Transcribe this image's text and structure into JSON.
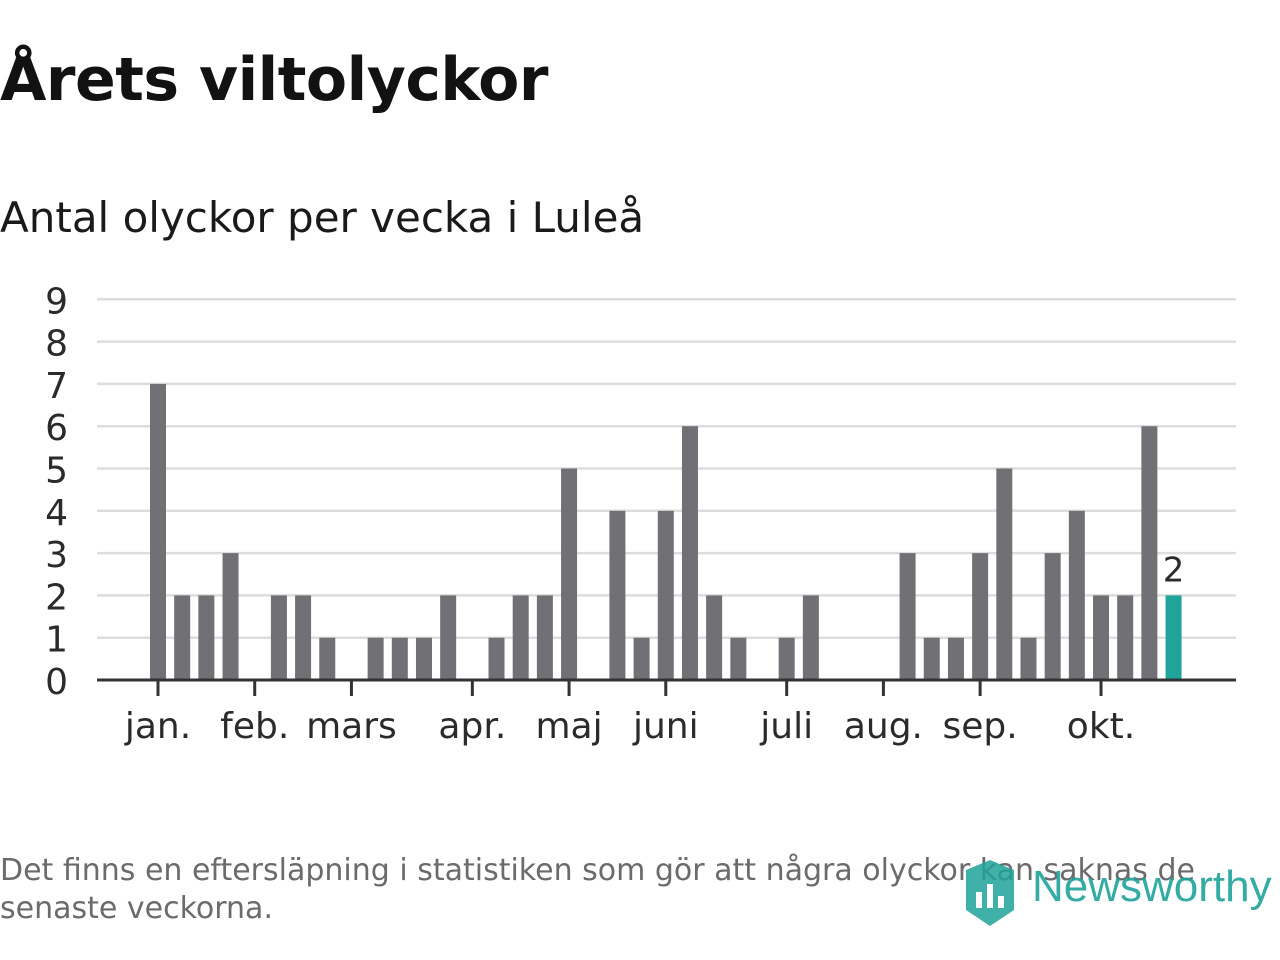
{
  "header": {
    "title": "Årets viltolyckor",
    "subtitle": "Antal olyckor per vecka i Luleå"
  },
  "footer": {
    "note": "Det finns en eftersläpning i statistiken som gör att några olyckor kan saknas de senaste veckorna.",
    "brand": "Newsworthy",
    "brand_icon": "newsworthy-logo-icon"
  },
  "colors": {
    "bar": "#707075",
    "highlight": "#1fa39a",
    "grid": "#dddddd",
    "axis": "#333333"
  },
  "chart_data": {
    "type": "bar",
    "title": "Antal olyckor per vecka i Luleå",
    "xlabel": "",
    "ylabel": "",
    "ylim": [
      0,
      9
    ],
    "yticks": [
      0,
      1,
      2,
      3,
      4,
      5,
      6,
      7,
      8,
      9
    ],
    "grid": true,
    "weeks": [
      1,
      2,
      3,
      4,
      5,
      6,
      7,
      8,
      9,
      10,
      11,
      12,
      13,
      14,
      15,
      16,
      17,
      18,
      19,
      20,
      21,
      22,
      23,
      24,
      25,
      26,
      27,
      28,
      29,
      30,
      31,
      32,
      33,
      34,
      35,
      36,
      37,
      38,
      39,
      40,
      41,
      42,
      43
    ],
    "values": [
      7,
      2,
      2,
      3,
      0,
      2,
      2,
      1,
      0,
      1,
      1,
      1,
      2,
      0,
      1,
      2,
      2,
      5,
      0,
      4,
      1,
      4,
      6,
      2,
      1,
      0,
      1,
      2,
      0,
      0,
      0,
      3,
      1,
      1,
      3,
      5,
      1,
      3,
      4,
      2,
      2,
      6,
      2
    ],
    "highlight_last": true,
    "highlight_label": "2",
    "month_ticks": [
      {
        "label": "jan.",
        "week": 1
      },
      {
        "label": "feb.",
        "week": 5
      },
      {
        "label": "mars",
        "week": 9
      },
      {
        "label": "apr.",
        "week": 14
      },
      {
        "label": "maj",
        "week": 18
      },
      {
        "label": "juni",
        "week": 22
      },
      {
        "label": "juli",
        "week": 27
      },
      {
        "label": "aug.",
        "week": 31
      },
      {
        "label": "sep.",
        "week": 35
      },
      {
        "label": "okt.",
        "week": 40
      }
    ]
  }
}
